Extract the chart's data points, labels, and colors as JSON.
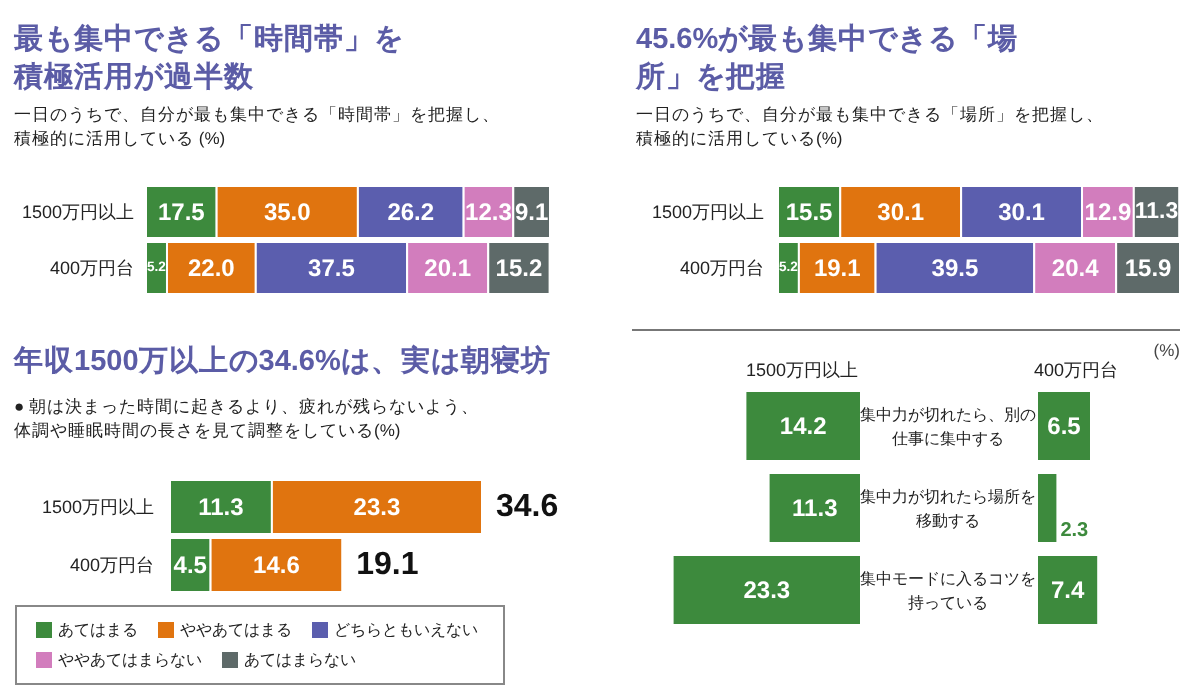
{
  "chart_data": [
    {
      "type": "bar",
      "orientation": "horizontal",
      "stacked": true,
      "title": "最も集中できる「時間帯」を積極活用が過半数",
      "subtitle": "一日のうちで、自分が最も集中できる「時間帯」を把握し、積極的に活用している (%)",
      "categories": [
        "1500万円以上",
        "400万円台"
      ],
      "data_labels": true,
      "legend": "bottom",
      "series": [
        {
          "name": "あてはまる",
          "color": "#3d8a3d",
          "values": [
            17.5,
            5.2
          ]
        },
        {
          "name": "ややあてはまる",
          "color": "#e0740f",
          "values": [
            35.0,
            22.0
          ],
          "value_labels": [
            "35.0",
            "22.0"
          ]
        },
        {
          "name": "どちらともいえない",
          "color": "#5b5eae",
          "values": [
            26.2,
            37.5
          ]
        },
        {
          "name": "ややあてはまらない",
          "color": "#d27dbd",
          "values": [
            12.3,
            20.1
          ]
        },
        {
          "name": "あてはまらない",
          "color": "#5e6a69",
          "values": [
            9.1,
            15.2
          ]
        }
      ]
    },
    {
      "type": "bar",
      "orientation": "horizontal",
      "stacked": true,
      "title": "45.6%が最も集中できる「場所」を把握",
      "subtitle": "一日のうちで、自分が最も集中できる「場所」を把握し、積極的に活用している(%)",
      "categories": [
        "1500万円以上",
        "400万円台"
      ],
      "data_labels": true,
      "series": [
        {
          "color": "#3d8a3d",
          "values": [
            15.5,
            5.2
          ]
        },
        {
          "color": "#e0740f",
          "values": [
            30.1,
            19.1
          ]
        },
        {
          "color": "#5b5eae",
          "values": [
            30.1,
            39.5
          ]
        },
        {
          "color": "#d27dbd",
          "values": [
            12.9,
            20.4
          ]
        },
        {
          "color": "#5e6a69",
          "values": [
            11.3,
            15.9
          ]
        }
      ]
    },
    {
      "type": "bar",
      "orientation": "horizontal",
      "stacked": true,
      "title": "年収1500万以上の34.6%は、実は朝寝坊",
      "subtitle": "● 朝は決まった時間に起きるより、疲れが残らないよう、体調や睡眠時間の長さを見て調整をしている(%)",
      "categories": [
        "1500万円以上",
        "400万円台"
      ],
      "data_labels": true,
      "totals": [
        "34.6",
        "19.1"
      ],
      "series": [
        {
          "color": "#3d8a3d",
          "values": [
            11.3,
            4.5
          ]
        },
        {
          "color": "#e0740f",
          "values": [
            23.3,
            14.6
          ]
        }
      ]
    },
    {
      "type": "bar",
      "orientation": "horizontal",
      "categories": [
        "集中力が切れたら、別の仕事に集中する",
        "集中力が切れたら場所を移動する",
        "集中モードに入るコツを持っている"
      ],
      "data_labels": true,
      "series": [
        {
          "name": "1500万円以上",
          "color": "#3d8a3d",
          "values": [
            14.2,
            11.3,
            23.3
          ]
        }
      ]
    },
    {
      "type": "bar",
      "orientation": "horizontal",
      "categories": [
        null,
        null,
        null
      ],
      "data_labels": true,
      "annotations": [
        "(%)"
      ],
      "series": [
        {
          "name": "400万円台",
          "color": "#3d8a3d",
          "values": [
            6.5,
            2.3,
            7.4
          ]
        }
      ]
    }
  ]
}
